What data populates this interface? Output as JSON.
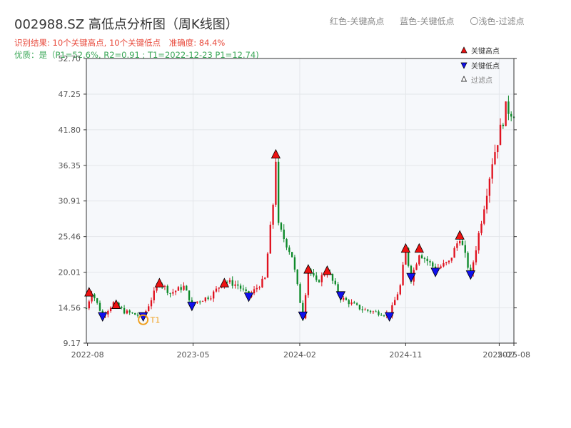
{
  "header": {
    "title": "002988.SZ 高低点分析图（周K线图）",
    "result_text": "识别结果: 10个关键高点, 10个关键低点",
    "accuracy_text": "准确度: 84.4%",
    "quality_text": "优质：是（P1=52.6%, R2=0.91 ; T1=2022-12-23 P1=12.74)"
  },
  "top_legend": {
    "red_label": "红色-关键高点",
    "blue_label": "蓝色-关键低点",
    "hollow_label": "〇浅色-过滤点"
  },
  "legend": {
    "high": "关键高点",
    "low": "关键低点",
    "filtered": "过滤点"
  },
  "colors": {
    "up": "#e0121f",
    "down": "#0e8a2a",
    "high_marker": "#ee1111",
    "low_marker": "#1010ee",
    "t1": "#f0a020",
    "plot_bg": "#f6f8fb",
    "grid": "#e3e6ea"
  },
  "chart_data": {
    "type": "candlestick",
    "title": "002988.SZ 高低点分析图（周K线图）",
    "x_range": [
      "2022-07-29",
      "2025-08-08"
    ],
    "ylim": [
      9.17,
      52.7
    ],
    "y_ticks": [
      "9.17",
      "14.56",
      "20.01",
      "25.46",
      "30.91",
      "36.35",
      "41.80",
      "47.25",
      "52.70"
    ],
    "x_ticks": [
      {
        "date": "2022-08-01",
        "label": "2022-08"
      },
      {
        "date": "2023-05-01",
        "label": "2023-05"
      },
      {
        "date": "2024-02-01",
        "label": "2024-02"
      },
      {
        "date": "2024-11-01",
        "label": "2024-11"
      },
      {
        "date": "2025-07-01",
        "label": "2025-07"
      },
      {
        "date": "2025-08-08",
        "label": "2025-08"
      }
    ],
    "anchors": [
      {
        "date": "2022-07-29",
        "price": 14.5
      },
      {
        "date": "2022-08-12",
        "price": 17.0
      },
      {
        "date": "2022-09-09",
        "price": 13.4
      },
      {
        "date": "2022-10-07",
        "price": 15.3
      },
      {
        "date": "2022-11-04",
        "price": 14.0
      },
      {
        "date": "2022-12-23",
        "price": 13.2
      },
      {
        "date": "2023-02-03",
        "price": 18.6
      },
      {
        "date": "2023-03-03",
        "price": 16.8
      },
      {
        "date": "2023-04-07",
        "price": 17.8
      },
      {
        "date": "2023-04-28",
        "price": 15.2
      },
      {
        "date": "2023-06-16",
        "price": 16.4
      },
      {
        "date": "2023-07-21",
        "price": 18.7
      },
      {
        "date": "2023-08-25",
        "price": 18.0
      },
      {
        "date": "2023-09-22",
        "price": 16.3
      },
      {
        "date": "2023-11-03",
        "price": 19.0
      },
      {
        "date": "2023-11-24",
        "price": 30.5
      },
      {
        "date": "2023-12-01",
        "price": 37.4
      },
      {
        "date": "2023-12-08",
        "price": 27.0
      },
      {
        "date": "2024-01-12",
        "price": 22.5
      },
      {
        "date": "2024-02-09",
        "price": 13.2
      },
      {
        "date": "2024-02-23",
        "price": 20.6
      },
      {
        "date": "2024-03-15",
        "price": 18.4
      },
      {
        "date": "2024-04-12",
        "price": 20.3
      },
      {
        "date": "2024-05-17",
        "price": 16.1
      },
      {
        "date": "2024-07-12",
        "price": 14.3
      },
      {
        "date": "2024-09-20",
        "price": 13.5
      },
      {
        "date": "2024-10-18",
        "price": 17.9
      },
      {
        "date": "2024-11-01",
        "price": 23.5
      },
      {
        "date": "2024-11-15",
        "price": 19.0
      },
      {
        "date": "2024-12-06",
        "price": 23.0
      },
      {
        "date": "2025-01-17",
        "price": 20.5
      },
      {
        "date": "2025-02-21",
        "price": 21.5
      },
      {
        "date": "2025-03-21",
        "price": 25.4
      },
      {
        "date": "2025-04-18",
        "price": 19.5
      },
      {
        "date": "2025-05-16",
        "price": 28.0
      },
      {
        "date": "2025-06-13",
        "price": 37.0
      },
      {
        "date": "2025-07-18",
        "price": 45.0
      },
      {
        "date": "2025-08-08",
        "price": 44.5
      }
    ],
    "key_highs": [
      {
        "date": "2022-08-05",
        "price": 16.9
      },
      {
        "date": "2022-10-14",
        "price": 15.0
      },
      {
        "date": "2023-02-03",
        "price": 18.3
      },
      {
        "date": "2023-07-21",
        "price": 18.3
      },
      {
        "date": "2023-12-01",
        "price": 38.0
      },
      {
        "date": "2024-02-23",
        "price": 20.4
      },
      {
        "date": "2024-04-12",
        "price": 20.2
      },
      {
        "date": "2024-11-01",
        "price": 23.6
      },
      {
        "date": "2024-12-06",
        "price": 23.6
      },
      {
        "date": "2025-03-21",
        "price": 25.6
      }
    ],
    "key_lows": [
      {
        "date": "2022-09-09",
        "price": 13.3
      },
      {
        "date": "2022-12-23",
        "price": 13.3
      },
      {
        "date": "2023-04-28",
        "price": 14.9
      },
      {
        "date": "2023-09-22",
        "price": 16.3
      },
      {
        "date": "2024-02-09",
        "price": 13.4
      },
      {
        "date": "2024-05-17",
        "price": 16.5
      },
      {
        "date": "2024-09-20",
        "price": 13.3
      },
      {
        "date": "2024-11-15",
        "price": 19.3
      },
      {
        "date": "2025-01-17",
        "price": 20.1
      },
      {
        "date": "2025-04-18",
        "price": 19.7
      }
    ],
    "t1": {
      "date": "2022-12-23",
      "price": 12.74,
      "label": "T1"
    }
  }
}
